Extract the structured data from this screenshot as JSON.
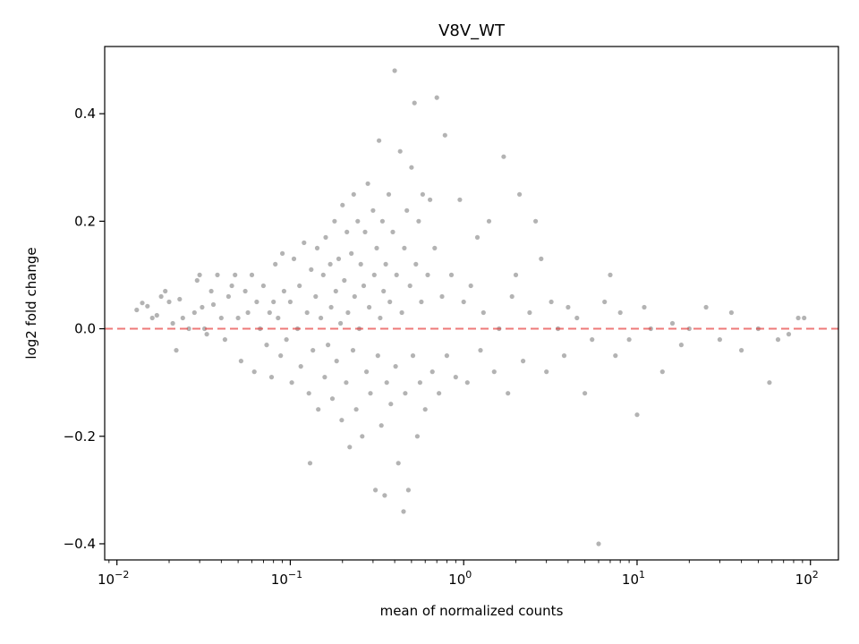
{
  "chart_data": {
    "type": "scatter",
    "title": "V8V_WT",
    "xlabel": "mean of normalized counts",
    "ylabel": "log2 fold change",
    "xscale": "log",
    "xlim": [
      0.0085,
      145
    ],
    "ylim": [
      -0.43,
      0.525
    ],
    "grid": false,
    "x_ticks": [
      {
        "value": 0.01,
        "base": "10",
        "exp": "−2"
      },
      {
        "value": 0.1,
        "base": "10",
        "exp": "−1"
      },
      {
        "value": 1,
        "base": "10",
        "exp": "0"
      },
      {
        "value": 10,
        "base": "10",
        "exp": "1"
      },
      {
        "value": 100,
        "base": "10",
        "exp": "2"
      }
    ],
    "y_ticks": [
      {
        "value": 0.4,
        "label": "0.4"
      },
      {
        "value": 0.2,
        "label": "0.2"
      },
      {
        "value": 0.0,
        "label": "0.0"
      },
      {
        "value": -0.2,
        "label": "−0.2"
      },
      {
        "value": -0.4,
        "label": "−0.4"
      }
    ],
    "reference_line": {
      "y": 0,
      "color": "#e8413f",
      "style": "dashed"
    },
    "point_color": "#808080",
    "points": [
      [
        0.013,
        0.035
      ],
      [
        0.014,
        0.048
      ],
      [
        0.015,
        0.042
      ],
      [
        0.016,
        0.02
      ],
      [
        0.017,
        0.025
      ],
      [
        0.018,
        0.06
      ],
      [
        0.019,
        0.07
      ],
      [
        0.02,
        0.05
      ],
      [
        0.021,
        0.01
      ],
      [
        0.022,
        -0.04
      ],
      [
        0.023,
        0.055
      ],
      [
        0.024,
        0.02
      ],
      [
        0.026,
        0.0
      ],
      [
        0.028,
        0.03
      ],
      [
        0.029,
        0.09
      ],
      [
        0.03,
        0.1
      ],
      [
        0.031,
        0.04
      ],
      [
        0.032,
        0.0
      ],
      [
        0.033,
        -0.01
      ],
      [
        0.035,
        0.07
      ],
      [
        0.036,
        0.045
      ],
      [
        0.038,
        0.1
      ],
      [
        0.04,
        0.02
      ],
      [
        0.042,
        -0.02
      ],
      [
        0.044,
        0.06
      ],
      [
        0.046,
        0.08
      ],
      [
        0.048,
        0.1
      ],
      [
        0.05,
        0.02
      ],
      [
        0.052,
        -0.06
      ],
      [
        0.055,
        0.07
      ],
      [
        0.057,
        0.03
      ],
      [
        0.06,
        0.1
      ],
      [
        0.062,
        -0.08
      ],
      [
        0.064,
        0.05
      ],
      [
        0.067,
        0.0
      ],
      [
        0.07,
        0.08
      ],
      [
        0.073,
        -0.03
      ],
      [
        0.076,
        0.03
      ],
      [
        0.078,
        -0.09
      ],
      [
        0.08,
        0.05
      ],
      [
        0.082,
        0.12
      ],
      [
        0.085,
        0.02
      ],
      [
        0.088,
        -0.05
      ],
      [
        0.09,
        0.14
      ],
      [
        0.092,
        0.07
      ],
      [
        0.095,
        -0.02
      ],
      [
        0.1,
        0.05
      ],
      [
        0.102,
        -0.1
      ],
      [
        0.105,
        0.13
      ],
      [
        0.11,
        0.0
      ],
      [
        0.113,
        0.08
      ],
      [
        0.115,
        -0.07
      ],
      [
        0.12,
        0.16
      ],
      [
        0.125,
        0.03
      ],
      [
        0.128,
        -0.12
      ],
      [
        0.13,
        -0.25
      ],
      [
        0.132,
        0.11
      ],
      [
        0.135,
        -0.04
      ],
      [
        0.14,
        0.06
      ],
      [
        0.143,
        0.15
      ],
      [
        0.145,
        -0.15
      ],
      [
        0.15,
        0.02
      ],
      [
        0.155,
        0.1
      ],
      [
        0.158,
        -0.09
      ],
      [
        0.16,
        0.17
      ],
      [
        0.165,
        -0.03
      ],
      [
        0.17,
        0.12
      ],
      [
        0.172,
        0.04
      ],
      [
        0.175,
        -0.13
      ],
      [
        0.18,
        0.2
      ],
      [
        0.183,
        0.07
      ],
      [
        0.185,
        -0.06
      ],
      [
        0.19,
        0.13
      ],
      [
        0.195,
        0.01
      ],
      [
        0.198,
        -0.17
      ],
      [
        0.2,
        0.23
      ],
      [
        0.205,
        0.09
      ],
      [
        0.21,
        -0.1
      ],
      [
        0.212,
        0.18
      ],
      [
        0.215,
        0.03
      ],
      [
        0.22,
        -0.22
      ],
      [
        0.225,
        0.14
      ],
      [
        0.23,
        -0.04
      ],
      [
        0.232,
        0.25
      ],
      [
        0.235,
        0.06
      ],
      [
        0.24,
        -0.15
      ],
      [
        0.245,
        0.2
      ],
      [
        0.25,
        0.0
      ],
      [
        0.255,
        0.12
      ],
      [
        0.26,
        -0.2
      ],
      [
        0.265,
        0.08
      ],
      [
        0.27,
        0.18
      ],
      [
        0.275,
        -0.08
      ],
      [
        0.28,
        0.27
      ],
      [
        0.285,
        0.04
      ],
      [
        0.29,
        -0.12
      ],
      [
        0.3,
        0.22
      ],
      [
        0.305,
        0.1
      ],
      [
        0.31,
        -0.3
      ],
      [
        0.315,
        0.15
      ],
      [
        0.32,
        -0.05
      ],
      [
        0.325,
        0.35
      ],
      [
        0.33,
        0.02
      ],
      [
        0.335,
        -0.18
      ],
      [
        0.34,
        0.2
      ],
      [
        0.345,
        0.07
      ],
      [
        0.35,
        -0.31
      ],
      [
        0.355,
        0.12
      ],
      [
        0.36,
        -0.1
      ],
      [
        0.37,
        0.25
      ],
      [
        0.375,
        0.05
      ],
      [
        0.38,
        -0.14
      ],
      [
        0.39,
        0.18
      ],
      [
        0.4,
        0.48
      ],
      [
        0.405,
        -0.07
      ],
      [
        0.41,
        0.1
      ],
      [
        0.42,
        -0.25
      ],
      [
        0.43,
        0.33
      ],
      [
        0.44,
        0.03
      ],
      [
        0.45,
        -0.34
      ],
      [
        0.455,
        0.15
      ],
      [
        0.46,
        -0.12
      ],
      [
        0.47,
        0.22
      ],
      [
        0.48,
        -0.3
      ],
      [
        0.49,
        0.08
      ],
      [
        0.5,
        0.3
      ],
      [
        0.51,
        -0.05
      ],
      [
        0.52,
        0.42
      ],
      [
        0.53,
        0.12
      ],
      [
        0.54,
        -0.2
      ],
      [
        0.55,
        0.2
      ],
      [
        0.56,
        -0.1
      ],
      [
        0.57,
        0.05
      ],
      [
        0.58,
        0.25
      ],
      [
        0.6,
        -0.15
      ],
      [
        0.62,
        0.1
      ],
      [
        0.64,
        0.24
      ],
      [
        0.66,
        -0.08
      ],
      [
        0.68,
        0.15
      ],
      [
        0.7,
        0.43
      ],
      [
        0.72,
        -0.12
      ],
      [
        0.75,
        0.06
      ],
      [
        0.78,
        0.36
      ],
      [
        0.8,
        -0.05
      ],
      [
        0.85,
        0.1
      ],
      [
        0.9,
        -0.09
      ],
      [
        0.95,
        0.24
      ],
      [
        1.0,
        0.05
      ],
      [
        1.05,
        -0.1
      ],
      [
        1.1,
        0.08
      ],
      [
        1.2,
        0.17
      ],
      [
        1.25,
        -0.04
      ],
      [
        1.3,
        0.03
      ],
      [
        1.4,
        0.2
      ],
      [
        1.5,
        -0.08
      ],
      [
        1.6,
        0.0
      ],
      [
        1.7,
        0.32
      ],
      [
        1.8,
        -0.12
      ],
      [
        1.9,
        0.06
      ],
      [
        2.0,
        0.1
      ],
      [
        2.1,
        0.25
      ],
      [
        2.2,
        -0.06
      ],
      [
        2.4,
        0.03
      ],
      [
        2.6,
        0.2
      ],
      [
        2.8,
        0.13
      ],
      [
        3.0,
        -0.08
      ],
      [
        3.2,
        0.05
      ],
      [
        3.5,
        0.0
      ],
      [
        3.8,
        -0.05
      ],
      [
        4.0,
        0.04
      ],
      [
        4.5,
        0.02
      ],
      [
        5.0,
        -0.12
      ],
      [
        5.5,
        -0.02
      ],
      [
        6.0,
        -0.4
      ],
      [
        6.5,
        0.05
      ],
      [
        7.0,
        0.1
      ],
      [
        7.5,
        -0.05
      ],
      [
        8.0,
        0.03
      ],
      [
        9.0,
        -0.02
      ],
      [
        10.0,
        -0.16
      ],
      [
        11.0,
        0.04
      ],
      [
        12.0,
        0.0
      ],
      [
        14.0,
        -0.08
      ],
      [
        16.0,
        0.01
      ],
      [
        18.0,
        -0.03
      ],
      [
        20.0,
        0.0
      ],
      [
        25.0,
        0.04
      ],
      [
        30.0,
        -0.02
      ],
      [
        35.0,
        0.03
      ],
      [
        40.0,
        -0.04
      ],
      [
        50.0,
        0.0
      ],
      [
        58.0,
        -0.1
      ],
      [
        65.0,
        -0.02
      ],
      [
        75.0,
        -0.01
      ],
      [
        85.0,
        0.02
      ],
      [
        92.0,
        0.02
      ]
    ]
  }
}
